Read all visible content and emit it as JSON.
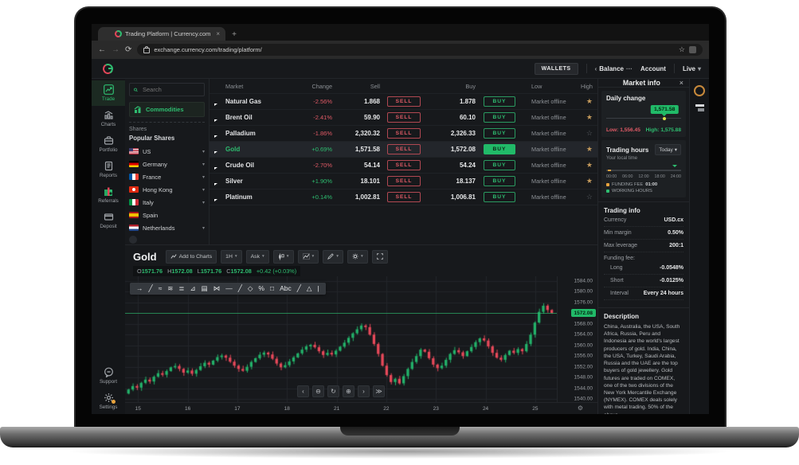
{
  "browser": {
    "tab_title": "Trading Platform | Currency.com",
    "tab_close": "×",
    "new_tab": "+",
    "back": "←",
    "forward": "→",
    "refresh": "⟳",
    "url": "exchange.currency.com/trading/platform/",
    "bookmark_star": "☆"
  },
  "app_header": {
    "wallets": "WALLETS",
    "balance_prev": "‹",
    "balance": "Balance",
    "balance_more": "···",
    "account": "Account",
    "live": "Live",
    "live_caret": "▾"
  },
  "sidebar": {
    "items": [
      {
        "label": "Trade",
        "icon": "trade-icon",
        "active": true
      },
      {
        "label": "Charts",
        "icon": "charts-icon",
        "active": false
      },
      {
        "label": "Portfolio",
        "icon": "portfolio-icon",
        "active": false
      },
      {
        "label": "Reports",
        "icon": "reports-icon",
        "active": false
      },
      {
        "label": "Referrals",
        "icon": "referrals-icon",
        "active": false
      },
      {
        "label": "Deposit",
        "icon": "deposit-icon",
        "active": false
      }
    ],
    "bottom_items": [
      {
        "label": "Support",
        "icon": "support-icon",
        "active": false
      },
      {
        "label": "Settings",
        "icon": "settings-icon",
        "active": false,
        "badge": true
      }
    ]
  },
  "instruments": {
    "search_placeholder": "Search",
    "category": "Commodities",
    "shares_title": "Shares",
    "popular_title": "Popular Shares",
    "countries": [
      {
        "name": "US",
        "code": "us",
        "chevron": "▾"
      },
      {
        "name": "Germany",
        "code": "de",
        "chevron": "▾"
      },
      {
        "name": "France",
        "code": "fr",
        "chevron": "▾"
      },
      {
        "name": "Hong Kong",
        "code": "hk",
        "chevron": "▾"
      },
      {
        "name": "Italy",
        "code": "it",
        "chevron": "▾"
      },
      {
        "name": "Spain",
        "code": "es",
        "chevron": ""
      },
      {
        "name": "Netherlands",
        "code": "nl",
        "chevron": "▾"
      }
    ]
  },
  "market_table": {
    "columns": [
      "Market",
      "Change",
      "Sell",
      "Buy",
      "Low",
      "High"
    ],
    "sell_label": "SELL",
    "buy_label": "BUY",
    "status": "Market offline",
    "rows": [
      {
        "name": "Natural Gas",
        "change": "-2.56%",
        "sell": "1.868",
        "buy": "1.878",
        "up": false,
        "starred": true,
        "active": false
      },
      {
        "name": "Brent Oil",
        "change": "-2.41%",
        "sell": "59.90",
        "buy": "60.10",
        "up": false,
        "starred": true,
        "active": false
      },
      {
        "name": "Palladium",
        "change": "-1.86%",
        "sell": "2,320.32",
        "buy": "2,326.33",
        "up": false,
        "starred": false,
        "active": false
      },
      {
        "name": "Gold",
        "change": "+0.69%",
        "sell": "1,571.58",
        "buy": "1,572.08",
        "up": true,
        "starred": true,
        "active": true
      },
      {
        "name": "Crude Oil",
        "change": "-2.70%",
        "sell": "54.14",
        "buy": "54.24",
        "up": false,
        "starred": true,
        "active": false
      },
      {
        "name": "Silver",
        "change": "+1.90%",
        "sell": "18.101",
        "buy": "18.137",
        "up": true,
        "starred": true,
        "active": false
      },
      {
        "name": "Platinum",
        "change": "+0.14%",
        "sell": "1,002.81",
        "buy": "1,006.81",
        "up": true,
        "starred": false,
        "active": false
      }
    ]
  },
  "market_info": {
    "title": "Market info",
    "close": "×",
    "daily_change": {
      "label": "Daily change",
      "value": "1,571.58",
      "low_label": "Low: 1,556.45",
      "high_label": "High: 1,575.88",
      "low": 1556.45,
      "high": 1575.88,
      "current": 1571.58
    },
    "trading_hours": {
      "label": "Trading hours",
      "sub": "Your local time",
      "range": "Today",
      "range_caret": "▾",
      "ticks": [
        "00:00",
        "06:00",
        "12:00",
        "18:00",
        "24:00"
      ],
      "legend": [
        {
          "label": "FUNDING FEE",
          "value": "01:00",
          "color": "#e8a33d"
        },
        {
          "label": "WORKING HOURS",
          "value": "",
          "color": "#2ebd70"
        }
      ]
    },
    "trading_info": {
      "title": "Trading info",
      "rows": [
        {
          "label": "Currency",
          "value": "USD.cx"
        },
        {
          "label": "Min margin",
          "value": "0.50%"
        },
        {
          "label": "Max leverage",
          "value": "200:1"
        }
      ],
      "funding_label": "Funding fee:",
      "funding_rows": [
        {
          "label": "Long",
          "value": "-0.0548%"
        },
        {
          "label": "Short",
          "value": "-0.0125%"
        },
        {
          "label": "Interval",
          "value": "Every 24 hours"
        }
      ]
    },
    "description": {
      "title": "Description",
      "text": "China, Australia, the USA, South Africa, Russia, Peru and Indonesia are the world's largest producers of gold. India, China, the USA, Turkey, Saudi Arabia, Russia and the UAE are the top buyers of gold jewellery. Gold futures are traded on COMEX, one of the two divisions of the New York Mercantile Exchange (NYMEX). COMEX deals solely with metal trading. 50% of the above-"
    }
  },
  "chart": {
    "title": "Gold",
    "add_to_charts": "Add to Charts",
    "timeframe": "1H",
    "price_mode": "Ask",
    "ohlc": [
      {
        "k": "O",
        "v": "1571.76"
      },
      {
        "k": "H",
        "v": "1572.08"
      },
      {
        "k": "L",
        "v": "1571.76"
      },
      {
        "k": "C",
        "v": "1572.08"
      }
    ],
    "change": "+0.42 (+0.03%)",
    "current_price": "1572.08",
    "draw_tools": [
      "→",
      "╱",
      "≈",
      "≋",
      "≣",
      "⊿",
      "▤",
      "⋈",
      "—",
      "╱",
      "◇",
      "%",
      "□",
      "Abc",
      "╱",
      "△",
      "|"
    ],
    "nav_controls": [
      "‹",
      "⊖",
      "↻",
      "⊕",
      "›",
      "≫"
    ],
    "axis_gear": "⚙"
  },
  "chart_data": {
    "type": "candlestick",
    "title": "Gold 1H",
    "ylim": [
      1540,
      1584
    ],
    "price_ticks": [
      1584,
      1580,
      1576,
      1568,
      1564,
      1560,
      1556,
      1552,
      1548,
      1544,
      1540
    ],
    "time_ticks": [
      "15",
      "16",
      "17",
      "18",
      "21",
      "22",
      "23",
      "24",
      "25"
    ],
    "current": 1572.08,
    "up_color": "#23b26a",
    "down_color": "#e8495a",
    "open_first": 1542.0,
    "closes": [
      1543.5,
      1544.8,
      1544.2,
      1546.0,
      1547.2,
      1546.5,
      1548.3,
      1549.6,
      1549.0,
      1550.4,
      1551.8,
      1552.3,
      1551.2,
      1549.8,
      1550.6,
      1549.4,
      1550.8,
      1552.2,
      1553.5,
      1552.8,
      1554.3,
      1555.6,
      1556.2,
      1555.4,
      1553.9,
      1552.4,
      1551.2,
      1550.5,
      1552.0,
      1553.8,
      1555.2,
      1556.5,
      1557.3,
      1556.6,
      1555.0,
      1553.2,
      1551.8,
      1552.6,
      1554.0,
      1555.5,
      1557.0,
      1558.4,
      1559.6,
      1560.2,
      1559.3,
      1557.8,
      1556.4,
      1557.2,
      1556.6,
      1558.0,
      1559.5,
      1561.0,
      1562.8,
      1564.5,
      1566.0,
      1567.4,
      1566.8,
      1564.0,
      1560.5,
      1556.8,
      1552.4,
      1548.9,
      1546.3,
      1547.5,
      1545.8,
      1548.5,
      1551.2,
      1553.8,
      1556.0,
      1558.4,
      1557.6,
      1555.2,
      1552.8,
      1551.5,
      1552.4,
      1554.6,
      1556.8,
      1558.2,
      1557.4,
      1556.0,
      1557.8,
      1559.4,
      1561.2,
      1562.6,
      1561.8,
      1559.6,
      1557.2,
      1555.4,
      1554.6,
      1556.4,
      1558.0,
      1557.2,
      1558.6,
      1557.8,
      1560.5,
      1564.0,
      1568.5,
      1572.5,
      1574.8,
      1573.2,
      1572.08
    ]
  }
}
